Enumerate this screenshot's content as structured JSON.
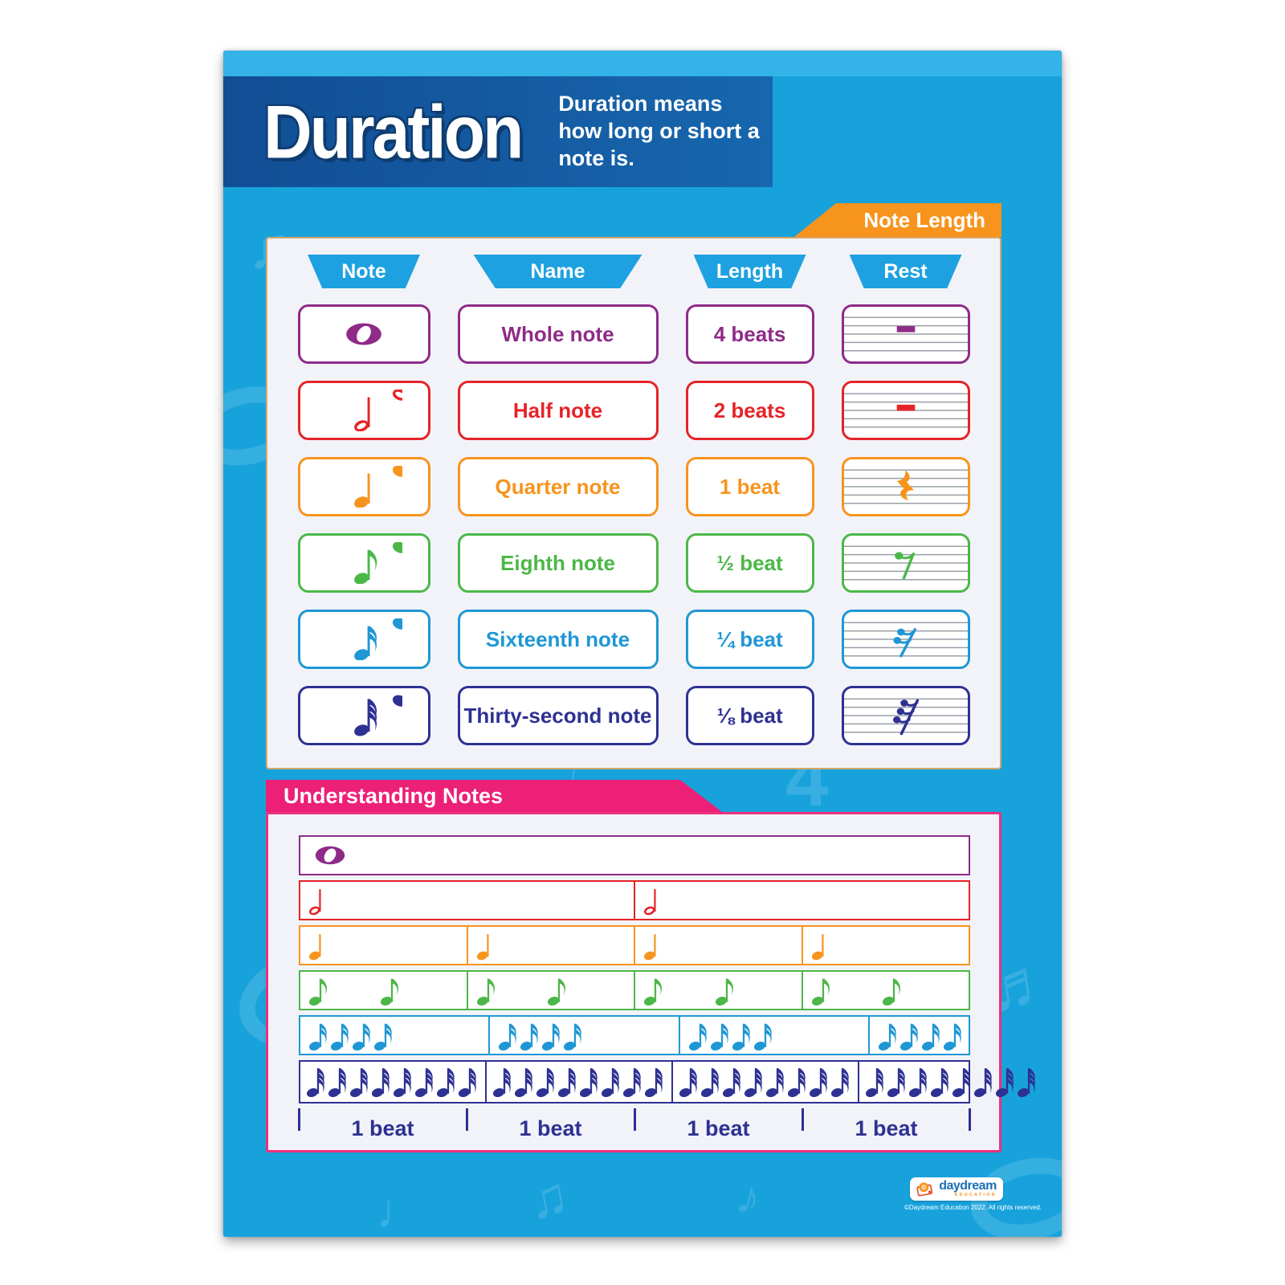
{
  "header": {
    "title": "Duration",
    "subtitle": "Duration means how long or short a note is."
  },
  "note_length": {
    "tab_label": "Note Length",
    "columns": [
      "Note",
      "Name",
      "Length",
      "Rest"
    ],
    "rows": [
      {
        "name": "Whole note",
        "length": "4 beats",
        "color": "#8e2b88",
        "note_icon": "whole-note",
        "rest_icon": "whole-rest"
      },
      {
        "name": "Half note",
        "length": "2 beats",
        "color": "#e52428",
        "note_icon": "half-note",
        "rest_icon": "half-rest"
      },
      {
        "name": "Quarter note",
        "length": "1 beat",
        "color": "#f7941e",
        "note_icon": "quarter-note",
        "rest_icon": "quarter-rest"
      },
      {
        "name": "Eighth note",
        "length": "½ beat",
        "color": "#4cb748",
        "note_icon": "eighth-note",
        "rest_icon": "eighth-rest"
      },
      {
        "name": "Sixteenth note",
        "length": "¼ beat",
        "color": "#1f97d4",
        "note_icon": "sixteenth-note",
        "rest_icon": "sixteenth-rest"
      },
      {
        "name": "Thirty-second note",
        "length": "⅛ beat",
        "color": "#2e3192",
        "note_icon": "thirty-second-note",
        "rest_icon": "thirty-second-rest"
      }
    ]
  },
  "understanding": {
    "banner_label": "Understanding Notes",
    "rows": [
      {
        "note": "whole",
        "cells": 1,
        "notes_per_cell": 1,
        "color": "#8e2b88"
      },
      {
        "note": "half",
        "cells": 2,
        "notes_per_cell": 1,
        "color": "#e52428"
      },
      {
        "note": "quarter",
        "cells": 4,
        "notes_per_cell": 1,
        "color": "#f7941e"
      },
      {
        "note": "eighth",
        "cells": 4,
        "notes_per_cell": 2,
        "color": "#4cb748"
      },
      {
        "note": "sixteenth",
        "cells": 4,
        "notes_per_cell": 4,
        "color": "#1f97d4"
      },
      {
        "note": "thirty-second",
        "cells": 4,
        "notes_per_cell": 8,
        "color": "#2e3192"
      }
    ],
    "beat_labels": [
      "1 beat",
      "1 beat",
      "1 beat",
      "1 beat"
    ]
  },
  "footer": {
    "logo_text": "daydream",
    "logo_subtext": "EDUCATION",
    "copyright": "©Daydream Education 2022. All rights reserved."
  },
  "colors": {
    "poster_background": "#18a2dc",
    "header_band": "#114d94",
    "column_header_blue": "#1ea1e0",
    "tab_orange": "#f7941e",
    "banner_pink": "#ec2077",
    "panel_background": "#f2f3f9",
    "beat_navy": "#2e3192"
  }
}
